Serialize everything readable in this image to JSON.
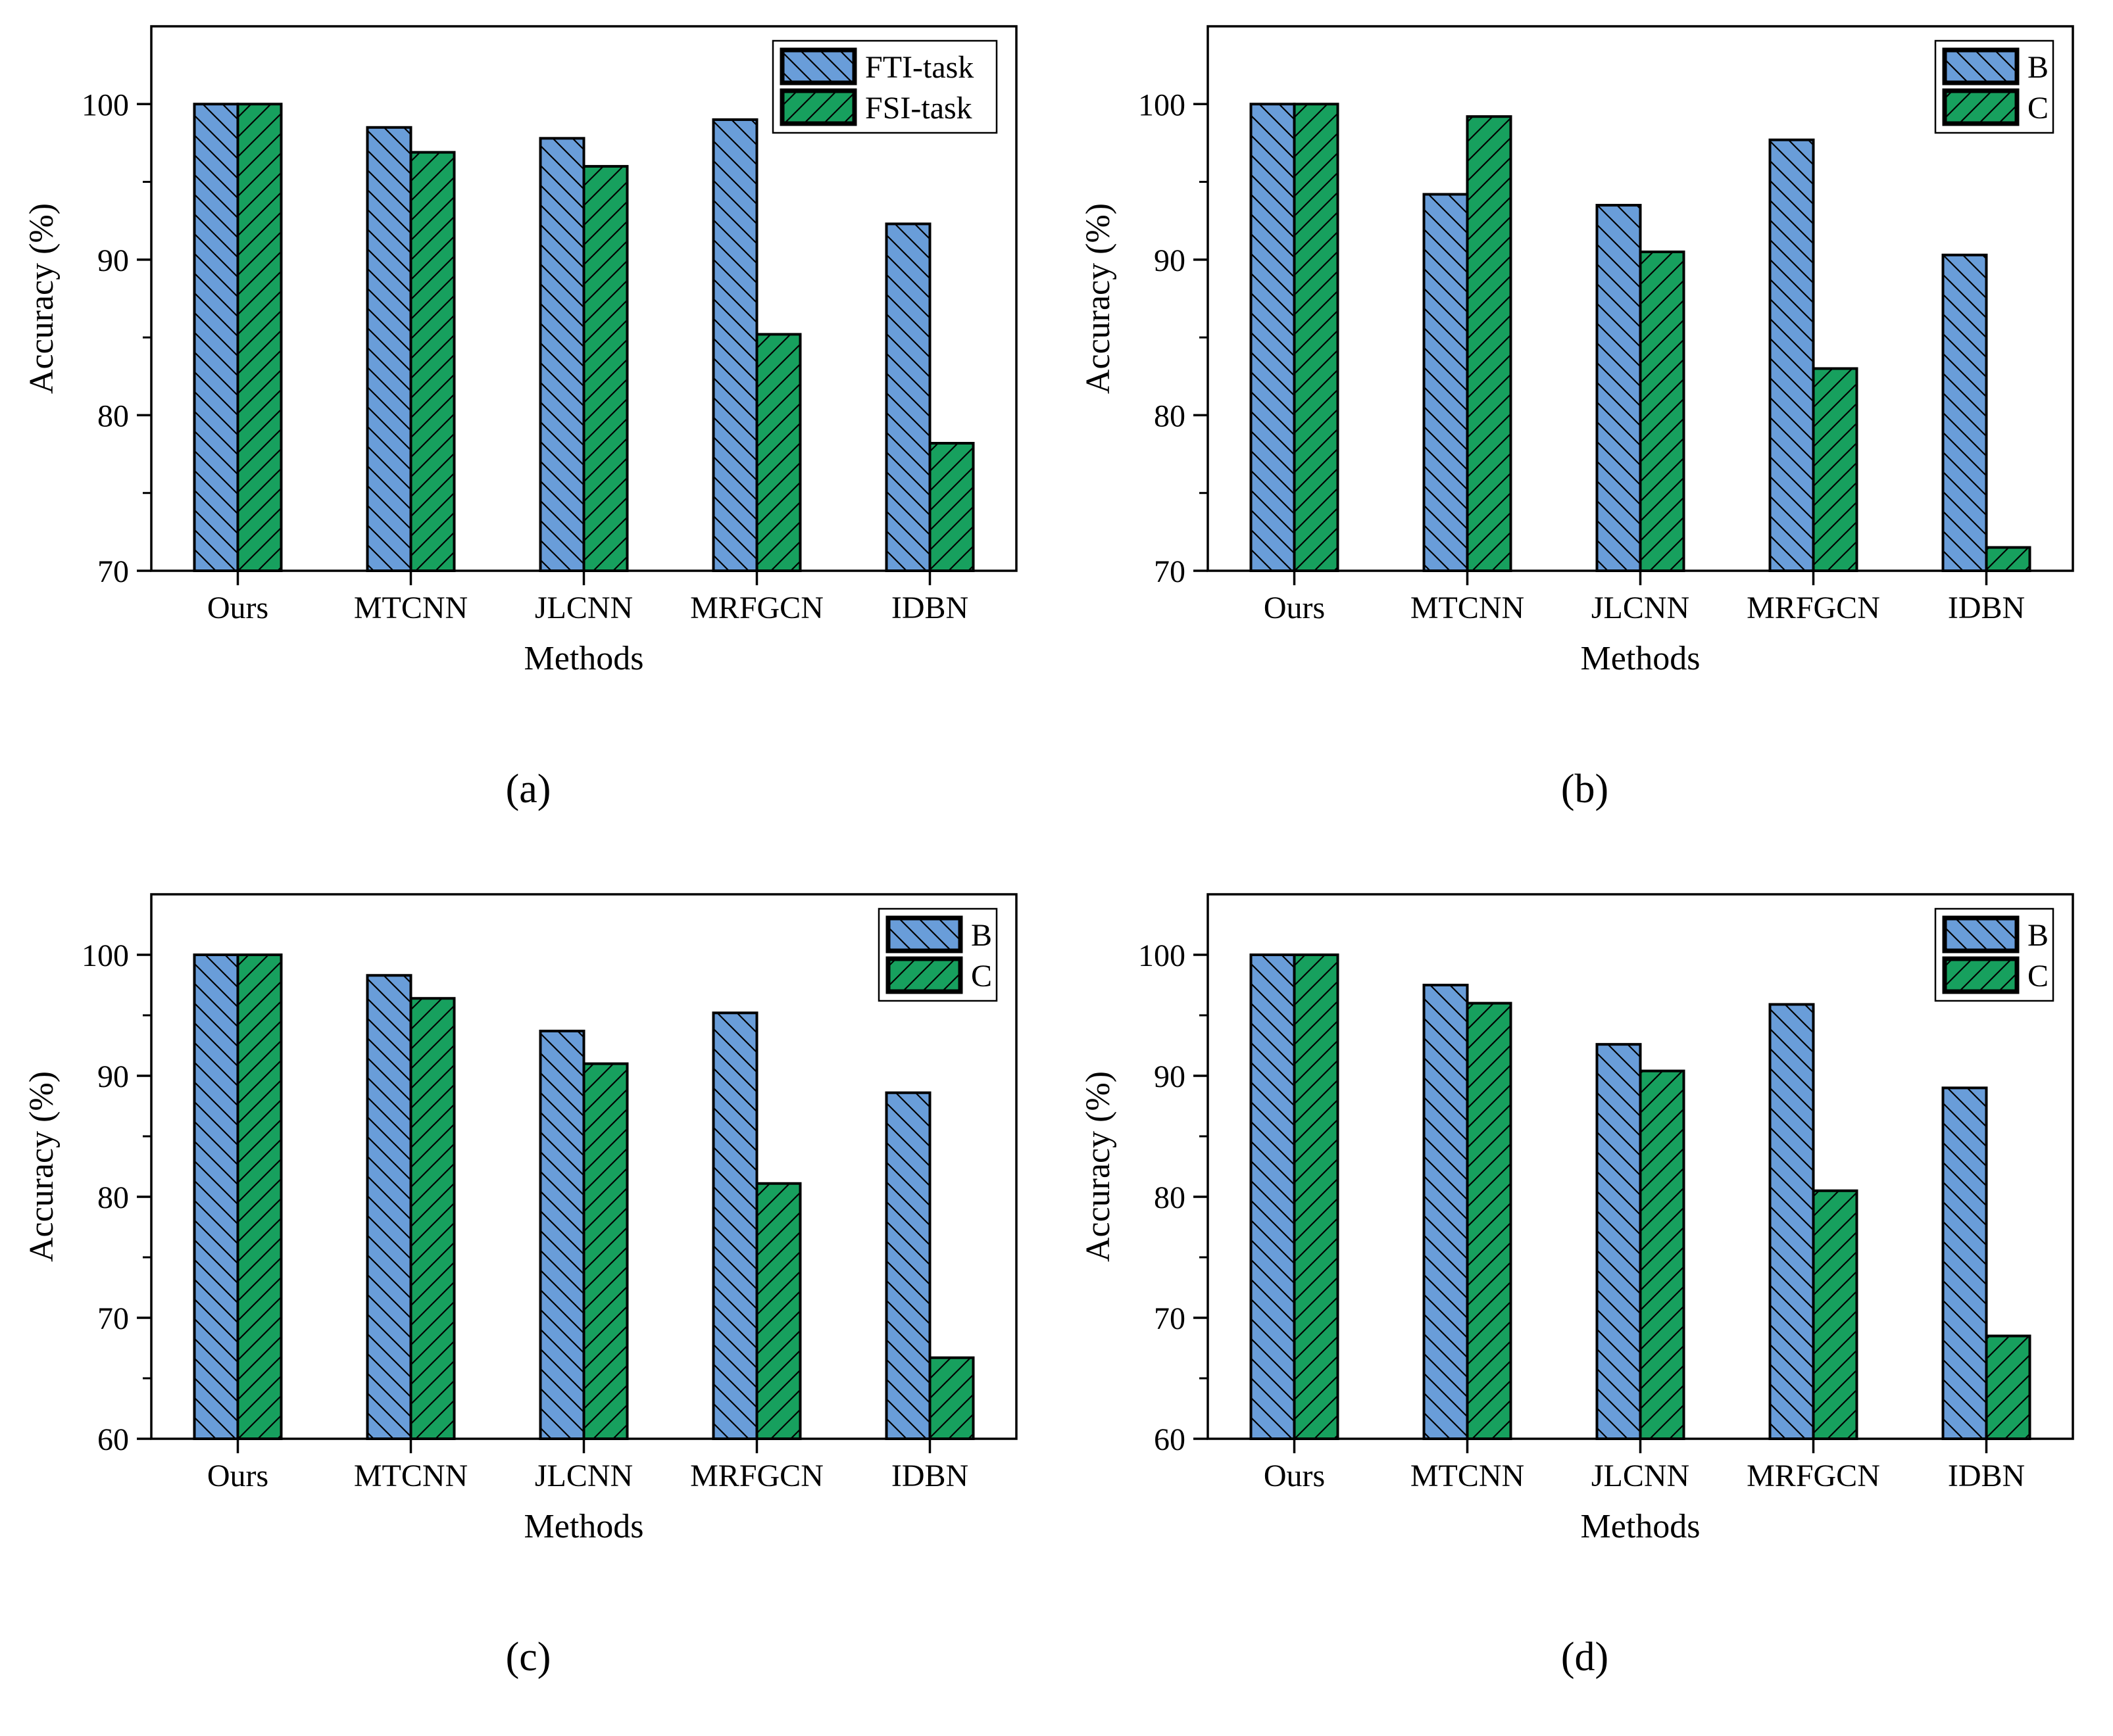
{
  "figure": {
    "background": "#ffffff",
    "captions": {
      "a": "(a)",
      "b": "(b)",
      "c": "(c)",
      "d": "(d)"
    }
  },
  "colors": {
    "bar_blue": "#699DD9",
    "bar_green": "#17A05E",
    "edge": "#000000",
    "text": "#000000",
    "legend_background": "#ffffff"
  },
  "chart_data": [
    {
      "type": "bar",
      "caption": "(a)",
      "title": "",
      "xlabel": "Methods",
      "ylabel": "Accuracy (%)",
      "categories": [
        "Ours",
        "MTCNN",
        "JLCNN",
        "MRFGCN",
        "IDBN"
      ],
      "series": [
        {
          "name": "FTI-task",
          "color": "#699DD9",
          "hatch": "\\",
          "values": [
            100,
            98.5,
            97.8,
            99.0,
            92.3
          ]
        },
        {
          "name": "FSI-task",
          "color": "#17A05E",
          "hatch": "/",
          "values": [
            100,
            96.9,
            96.0,
            85.2,
            78.2
          ]
        }
      ],
      "ylim": [
        70,
        105
      ],
      "yticks": [
        70,
        80,
        90,
        100
      ],
      "yticks_minor": [
        75,
        85,
        95
      ],
      "legend_position": "top-right",
      "grid": false
    },
    {
      "type": "bar",
      "caption": "(b)",
      "title": "",
      "xlabel": "Methods",
      "ylabel": "Accuracy (%)",
      "categories": [
        "Ours",
        "MTCNN",
        "JLCNN",
        "MRFGCN",
        "IDBN"
      ],
      "series": [
        {
          "name": "B",
          "color": "#699DD9",
          "hatch": "\\",
          "values": [
            100,
            94.2,
            93.5,
            97.7,
            90.3
          ]
        },
        {
          "name": "C",
          "color": "#17A05E",
          "hatch": "/",
          "values": [
            100,
            99.2,
            90.5,
            83.0,
            71.5
          ]
        }
      ],
      "ylim": [
        70,
        105
      ],
      "yticks": [
        70,
        80,
        90,
        100
      ],
      "yticks_minor": [
        75,
        85,
        95
      ],
      "legend_position": "top-right",
      "grid": false
    },
    {
      "type": "bar",
      "caption": "(c)",
      "title": "",
      "xlabel": "Methods",
      "ylabel": "Accuracy (%)",
      "categories": [
        "Ours",
        "MTCNN",
        "JLCNN",
        "MRFGCN",
        "IDBN"
      ],
      "series": [
        {
          "name": "B",
          "color": "#699DD9",
          "hatch": "\\",
          "values": [
            100,
            98.3,
            93.7,
            95.2,
            88.6
          ]
        },
        {
          "name": "C",
          "color": "#17A05E",
          "hatch": "/",
          "values": [
            100,
            96.4,
            91.0,
            81.1,
            66.7
          ]
        }
      ],
      "ylim": [
        60,
        105
      ],
      "yticks": [
        60,
        70,
        80,
        90,
        100
      ],
      "yticks_minor": [
        65,
        75,
        85,
        95
      ],
      "legend_position": "top-right",
      "grid": false
    },
    {
      "type": "bar",
      "caption": "(d)",
      "title": "",
      "xlabel": "Methods",
      "ylabel": "Accuracy (%)",
      "categories": [
        "Ours",
        "MTCNN",
        "JLCNN",
        "MRFGCN",
        "IDBN"
      ],
      "series": [
        {
          "name": "B",
          "color": "#699DD9",
          "hatch": "\\",
          "values": [
            100,
            97.5,
            92.6,
            95.9,
            89.0
          ]
        },
        {
          "name": "C",
          "color": "#17A05E",
          "hatch": "/",
          "values": [
            100,
            96.0,
            90.4,
            80.5,
            68.5
          ]
        }
      ],
      "ylim": [
        60,
        105
      ],
      "yticks": [
        60,
        70,
        80,
        90,
        100
      ],
      "yticks_minor": [
        65,
        75,
        85,
        95
      ],
      "legend_position": "top-right",
      "grid": false
    }
  ]
}
